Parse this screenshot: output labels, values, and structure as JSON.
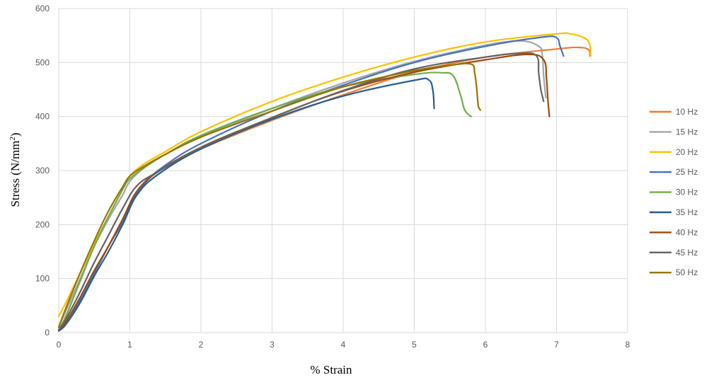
{
  "chart_data": {
    "type": "line",
    "title": "",
    "xlabel": "% Strain",
    "ylabel_main": "Stress (N/mm",
    "ylabel_sup": "2",
    "ylabel_end": ")",
    "xlim": [
      0,
      8
    ],
    "ylim": [
      0,
      600
    ],
    "x_ticks": [
      "0",
      "1",
      "2",
      "3",
      "4",
      "5",
      "6",
      "7",
      "8"
    ],
    "y_ticks": [
      "0",
      "100",
      "200",
      "300",
      "400",
      "500",
      "600"
    ],
    "grid": true,
    "legend_position": "right",
    "series": [
      {
        "name": "10 Hz",
        "color": "#ED7D31",
        "x": [
          0,
          0.1,
          0.3,
          0.5,
          0.7,
          0.9,
          1.1,
          1.4,
          2,
          3,
          4,
          5,
          6,
          7,
          7.3,
          7.45,
          7.47
        ],
        "y": [
          5,
          18,
          60,
          110,
          160,
          210,
          260,
          300,
          340,
          393,
          440,
          482,
          510,
          525,
          528,
          524,
          512
        ]
      },
      {
        "name": "15 Hz",
        "color": "#A5A5A5",
        "x": [
          0,
          0.1,
          0.3,
          0.5,
          0.7,
          0.9,
          1,
          1.2,
          1.5,
          2,
          3,
          4,
          5,
          6,
          6.5,
          6.75,
          6.8,
          6.82,
          6.85
        ],
        "y": [
          10,
          40,
          100,
          160,
          210,
          255,
          280,
          305,
          330,
          362,
          415,
          462,
          502,
          532,
          540,
          530,
          515,
          475,
          435
        ]
      },
      {
        "name": "20 Hz",
        "color": "#FFC000",
        "x": [
          0,
          0.1,
          0.3,
          0.5,
          0.7,
          0.9,
          1,
          1.2,
          1.5,
          2,
          3,
          4,
          5,
          6,
          7,
          7.2,
          7.4,
          7.47,
          7.48
        ],
        "y": [
          30,
          55,
          110,
          165,
          215,
          265,
          290,
          312,
          335,
          372,
          428,
          473,
          510,
          538,
          553,
          553,
          545,
          532,
          512
        ]
      },
      {
        "name": "25 Hz",
        "color": "#4472C4",
        "x": [
          0,
          0.1,
          0.3,
          0.5,
          0.7,
          0.9,
          1,
          1.2,
          1.5,
          2,
          3,
          4,
          5,
          6,
          6.8,
          7,
          7.05,
          7.1
        ],
        "y": [
          5,
          20,
          60,
          110,
          160,
          205,
          235,
          275,
          310,
          350,
          410,
          458,
          500,
          530,
          547,
          546,
          530,
          512
        ]
      },
      {
        "name": "30 Hz",
        "color": "#70AD47",
        "x": [
          0,
          0.1,
          0.3,
          0.5,
          0.7,
          0.9,
          1,
          1.2,
          1.5,
          2,
          3,
          4,
          5,
          5.4,
          5.55,
          5.65,
          5.7,
          5.75,
          5.8
        ],
        "y": [
          5,
          30,
          95,
          160,
          215,
          265,
          285,
          305,
          330,
          365,
          415,
          455,
          478,
          481,
          475,
          440,
          415,
          405,
          400
        ]
      },
      {
        "name": "35 Hz",
        "color": "#255E91",
        "x": [
          0,
          0.1,
          0.3,
          0.5,
          0.7,
          0.9,
          1.1,
          1.4,
          2,
          3,
          4,
          5,
          5.2,
          5.26,
          5.28
        ],
        "y": [
          3,
          15,
          55,
          105,
          150,
          200,
          255,
          293,
          340,
          395,
          438,
          467,
          468,
          450,
          415
        ]
      },
      {
        "name": "40 Hz",
        "color": "#9E480E",
        "x": [
          0,
          0.1,
          0.3,
          0.5,
          0.7,
          0.9,
          1.1,
          1.4,
          2,
          3,
          4,
          5,
          6,
          6.6,
          6.82,
          6.86,
          6.88,
          6.9
        ],
        "y": [
          5,
          20,
          65,
          115,
          160,
          210,
          262,
          298,
          343,
          398,
          447,
          482,
          505,
          515,
          505,
          470,
          430,
          400
        ]
      },
      {
        "name": "45 Hz",
        "color": "#636363",
        "x": [
          0,
          0.1,
          0.3,
          0.5,
          0.7,
          0.9,
          1.1,
          1.4,
          2,
          3,
          4,
          5,
          6,
          6.5,
          6.72,
          6.75,
          6.78,
          6.82
        ],
        "y": [
          5,
          25,
          75,
          130,
          180,
          230,
          272,
          298,
          342,
          398,
          448,
          488,
          510,
          517,
          512,
          480,
          450,
          428
        ]
      },
      {
        "name": "50 Hz",
        "color": "#997300",
        "x": [
          0,
          0.1,
          0.3,
          0.5,
          0.7,
          0.9,
          1,
          1.2,
          1.5,
          2,
          3,
          4,
          5,
          5.5,
          5.8,
          5.85,
          5.88,
          5.9,
          5.93
        ],
        "y": [
          10,
          45,
          110,
          170,
          225,
          270,
          290,
          308,
          330,
          362,
          410,
          455,
          485,
          495,
          497,
          480,
          450,
          420,
          412
        ]
      }
    ]
  }
}
